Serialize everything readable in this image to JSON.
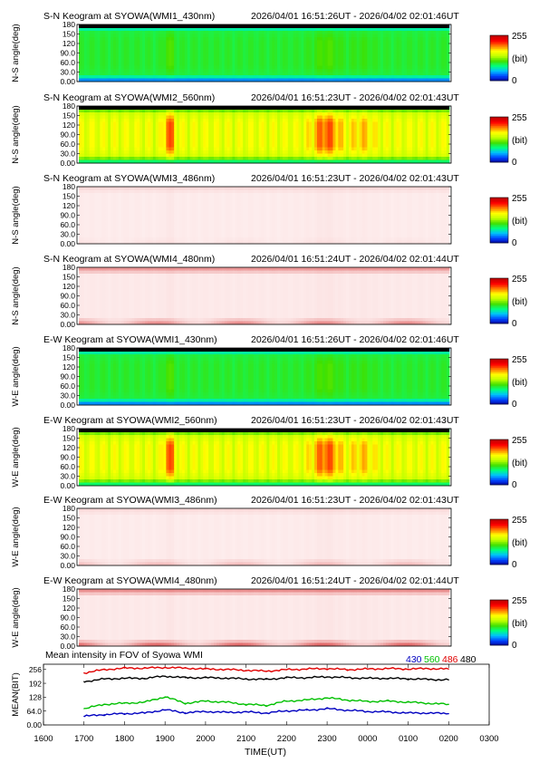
{
  "keograms": [
    {
      "title": "S-N Keogram at SYOWA(WMI1_430nm)",
      "time_range": "2026/04/01 16:51:26UT - 2026/04/02 02:01:46UT",
      "ylabel": "N-S angle(deg)",
      "scheme": "rainbow",
      "base": 0.38,
      "amp": 0.08,
      "cbar_max": "255",
      "cbar_unit": "(bit)",
      "cbar_min": "0"
    },
    {
      "title": "S-N Keogram at SYOWA(WMI2_560nm)",
      "time_range": "2026/04/01 16:51:23UT - 2026/04/02 02:01:43UT",
      "ylabel": "N-S angle(deg)",
      "scheme": "rainbow",
      "base": 0.55,
      "amp": 0.28,
      "cbar_max": "255",
      "cbar_unit": "(bit)",
      "cbar_min": "0"
    },
    {
      "title": "S-N Keogram at SYOWA(WMI3_486nm)",
      "time_range": "2026/04/01 16:51:23UT - 2026/04/02 02:01:43UT",
      "ylabel": "N-S angle(deg)",
      "scheme": "pale",
      "base": 0.03,
      "amp": 0.03,
      "edge_low": 0.05,
      "edge_high": 0.1,
      "cbar_max": "255",
      "cbar_unit": "(bit)",
      "cbar_min": "0"
    },
    {
      "title": "S-N Keogram at SYOWA(WMI4_480nm)",
      "time_range": "2026/04/01 16:51:24UT - 2026/04/02 02:01:44UT",
      "ylabel": "N-S angle(deg)",
      "scheme": "pale",
      "base": 0.04,
      "amp": 0.03,
      "edge_low": 0.5,
      "edge_high": 0.45,
      "cbar_max": "255",
      "cbar_unit": "(bit)",
      "cbar_min": "0"
    },
    {
      "title": "E-W Keogram at SYOWA(WMI1_430nm)",
      "time_range": "2026/04/01 16:51:26UT - 2026/04/02 02:01:46UT",
      "ylabel": "W-E angle(deg)",
      "scheme": "rainbow",
      "base": 0.38,
      "amp": 0.08,
      "cbar_max": "255",
      "cbar_unit": "(bit)",
      "cbar_min": "0"
    },
    {
      "title": "E-W Keogram at SYOWA(WMI2_560nm)",
      "time_range": "2026/04/01 16:51:23UT - 2026/04/02 02:01:43UT",
      "ylabel": "W-E angle(deg)",
      "scheme": "rainbow",
      "base": 0.55,
      "amp": 0.28,
      "cbar_max": "255",
      "cbar_unit": "(bit)",
      "cbar_min": "0"
    },
    {
      "title": "E-W Keogram at SYOWA(WMI3_486nm)",
      "time_range": "2026/04/01 16:51:23UT - 2026/04/02 02:01:43UT",
      "ylabel": "W-E angle(deg)",
      "scheme": "pale",
      "base": 0.03,
      "amp": 0.03,
      "edge_low": 0.25,
      "edge_high": 0.1,
      "cbar_max": "255",
      "cbar_unit": "(bit)",
      "cbar_min": "0"
    },
    {
      "title": "E-W Keogram at SYOWA(WMI4_480nm)",
      "time_range": "2026/04/01 16:51:24UT - 2026/04/02 02:01:44UT",
      "ylabel": "W-E angle(deg)",
      "scheme": "pale",
      "base": 0.04,
      "amp": 0.03,
      "edge_low": 0.7,
      "edge_high": 0.5,
      "cbar_max": "255",
      "cbar_unit": "(bit)",
      "cbar_min": "0"
    }
  ],
  "angle_ticks": [
    "0.00",
    "30.0",
    "60.0",
    "90.0",
    "120",
    "150",
    "180"
  ],
  "angle_values": [
    0,
    30,
    60,
    90,
    120,
    150,
    180
  ],
  "colors": {
    "rainbow": [
      "#000090",
      "#0040ff",
      "#00c0ff",
      "#00ff80",
      "#40e000",
      "#c0ff00",
      "#ffff00",
      "#ff8000",
      "#ff0000",
      "#c00000"
    ],
    "pale_low": "#fff4f4",
    "pale_high": "#d01010"
  },
  "mean_panel": {
    "title": "Mean intensity in FOV of Syowa WMI",
    "legend": [
      {
        "label": "430",
        "color": "#0000c0"
      },
      {
        "label": "560",
        "color": "#00c000"
      },
      {
        "label": "486",
        "color": "#e00000"
      },
      {
        "label": "480",
        "color": "#000000"
      }
    ],
    "ylabel": "MEAN(BIT)",
    "xlabel": "TIME(UT)"
  },
  "time_ticks": [
    "1600",
    "1700",
    "1800",
    "1900",
    "2000",
    "2100",
    "2200",
    "2300",
    "0000",
    "0100",
    "0200",
    "0300"
  ],
  "mean_ticks": [
    "0.00",
    "64.0",
    "128",
    "192",
    "256"
  ],
  "chart_data": {
    "type": "line",
    "title": "Mean intensity in FOV of Syowa WMI",
    "xlabel": "TIME(UT)",
    "ylabel": "MEAN(BIT)",
    "x_range": [
      "1600",
      "0300"
    ],
    "ylim": [
      0,
      280
    ],
    "x": [
      "1700",
      "1730",
      "1800",
      "1830",
      "1900",
      "1930",
      "2000",
      "2030",
      "2100",
      "2130",
      "2200",
      "2230",
      "2300",
      "2330",
      "0000",
      "0030",
      "0100",
      "0130",
      "0200"
    ],
    "series": [
      {
        "name": "430",
        "values": [
          40,
          48,
          52,
          55,
          70,
          56,
          62,
          58,
          60,
          55,
          65,
          68,
          75,
          68,
          62,
          60,
          55,
          55,
          52
        ]
      },
      {
        "name": "560",
        "values": [
          75,
          95,
          100,
          105,
          130,
          100,
          110,
          105,
          95,
          90,
          110,
          115,
          125,
          115,
          108,
          110,
          105,
          100,
          95
        ]
      },
      {
        "name": "486",
        "values": [
          240,
          255,
          262,
          262,
          265,
          262,
          258,
          256,
          252,
          248,
          255,
          258,
          260,
          255,
          258,
          260,
          258,
          260,
          258
        ]
      },
      {
        "name": "480",
        "values": [
          200,
          212,
          215,
          215,
          225,
          218,
          218,
          216,
          212,
          210,
          218,
          218,
          222,
          218,
          215,
          215,
          213,
          210,
          208
        ]
      }
    ]
  }
}
